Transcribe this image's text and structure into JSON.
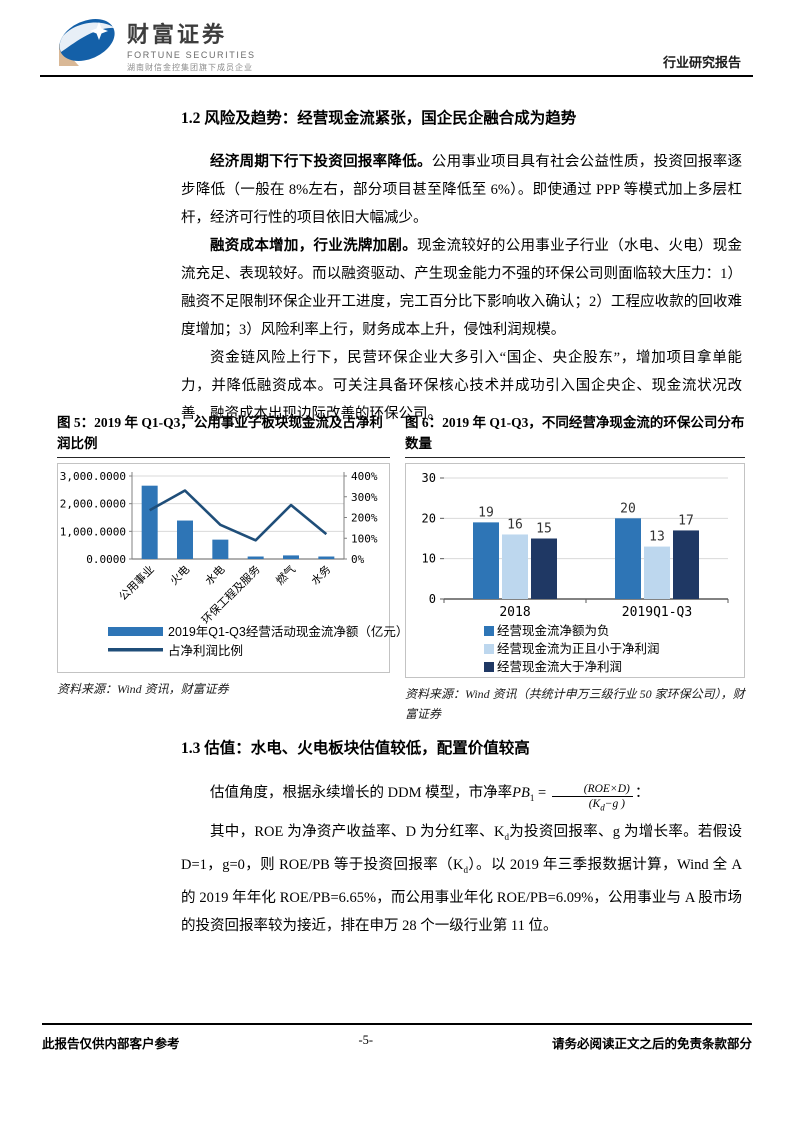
{
  "header": {
    "brand_cn": "财富证券",
    "brand_en": "FORTUNE SECURITIES",
    "brand_sub": "湖南财信金控集团旗下成员企业",
    "report_type": "行业研究报告"
  },
  "sections": {
    "s12_title": "1.2 风险及趋势：经营现金流紧张，国企民企融合成为趋势",
    "p1_lead": "经济周期下行下投资回报率降低。",
    "p1_body": "公用事业项目具有社会公益性质，投资回报率逐步降低（一般在 8%左右，部分项目甚至降低至 6%）。即使通过 PPP 等模式加上多层杠杆，经济可行性的项目依旧大幅减少。",
    "p2_lead": "融资成本增加，行业洗牌加剧。",
    "p2_body": "现金流较好的公用事业子行业（水电、火电）现金流充足、表现较好。而以融资驱动、产生现金能力不强的环保公司则面临较大压力：1）融资不足限制环保企业开工进度，完工百分比下影响收入确认；2）工程应收款的回收难度增加；3）风险利率上行，财务成本上升，侵蚀利润规模。",
    "p3": "资金链风险上行下，民营环保企业大多引入“国企、央企股东”，增加项目拿单能力，并降低融资成本。可关注具备环保核心技术并成功引入国企央企、现金流状况改善、融资成本出现边际改善的环保公司。",
    "s13_title": "1.3 估值：水电、火电板块估值较低，配置价值较高",
    "p4_pre": "估值角度，根据永续增长的 DDM 模型，市净率",
    "formula": {
      "lhs": "PB",
      "lhs_sub": "1",
      "eq": " = ",
      "num": "(ROE×D)",
      "den_pre": "(K",
      "den_sub": "d",
      "den_post": "−g )",
      "tail": "："
    },
    "p5_a": "其中，ROE 为净资产收益率、D 为分红率、K",
    "p5_sub1": "d",
    "p5_b": "为投资回报率、g 为增长率。若假设 D=1，g=0，则 ROE/PB 等于投资回报率（K",
    "p5_sub2": "d",
    "p5_c": "）。以 2019 年三季报数据计算，Wind 全 A 的 2019 年年化 ROE/PB=6.65%，而公用事业年化 ROE/PB=6.09%，公用事业与 A 股市场的投资回报率较为接近，排在申万 28 个一级行业第 11 位。"
  },
  "figures": {
    "fig5": {
      "caption": "图 5：2019 年 Q1-Q3，公用事业子板块现金流及占净利润比例",
      "source": "资料来源：Wind 资讯，财富证券"
    },
    "fig6": {
      "caption": "图 6：2019 年 Q1-Q3，不同经营净现金流的环保公司分布数量",
      "source": "资料来源：Wind 资讯（共统计申万三级行业 50 家环保公司），财富证券"
    }
  },
  "chart_data": [
    {
      "id": "fig5",
      "type": "bar",
      "subtype": "bar-line-combo",
      "title": "2019 年 Q1-Q3，公用事业子板块现金流及占净利润比例",
      "categories": [
        "公用事业",
        "火电",
        "水电",
        "环保工程及服务",
        "燃气",
        "水务"
      ],
      "series": [
        {
          "name": "2019年Q1-Q3经营活动现金流净额（亿元）",
          "type": "bar",
          "axis": "left",
          "values": [
            2650,
            1390,
            700,
            90,
            130,
            90
          ],
          "color": "#2E75B6"
        },
        {
          "name": "占净利润比例",
          "type": "line",
          "axis": "right",
          "values": [
            235,
            330,
            165,
            90,
            260,
            120
          ],
          "color": "#1F4E79"
        }
      ],
      "left_axis": {
        "max": 3000,
        "ticks": [
          {
            "label": "3,000.0000",
            "value": 3000
          },
          {
            "label": "2,000.0000",
            "value": 2000
          },
          {
            "label": "1,000.0000",
            "value": 1000
          },
          {
            "label": "0.0000",
            "value": 0
          }
        ]
      },
      "right_axis": {
        "max": 400,
        "ticks": [
          {
            "label": "400%",
            "value": 400
          },
          {
            "label": "300%",
            "value": 300
          },
          {
            "label": "200%",
            "value": 200
          },
          {
            "label": "100%",
            "value": 100
          },
          {
            "label": "0%",
            "value": 0
          }
        ]
      },
      "grid": true,
      "legend_position": "bottom"
    },
    {
      "id": "fig6",
      "type": "bar",
      "subtype": "grouped-bar",
      "title": "2019 年 Q1-Q3，不同经营净现金流的环保公司分布数量",
      "categories": [
        "2018",
        "2019Q1-Q3"
      ],
      "series": [
        {
          "name": "经营现金流净额为负",
          "values": [
            19,
            20
          ],
          "color": "#2E75B6"
        },
        {
          "name": "经营现金流为正且小于净利润",
          "values": [
            16,
            13
          ],
          "color": "#BDD7EE"
        },
        {
          "name": "经营现金流大于净利润",
          "values": [
            15,
            17
          ],
          "color": "#1F3864"
        }
      ],
      "ylim": [
        0,
        30
      ],
      "yticks": [
        0,
        10,
        20,
        30
      ],
      "data_labels": true,
      "grid": true,
      "legend_position": "bottom"
    }
  ],
  "footer": {
    "left": "此报告仅供内部客户参考",
    "page": "-5-",
    "right": "请务必阅读正文之后的免责条款部分"
  }
}
